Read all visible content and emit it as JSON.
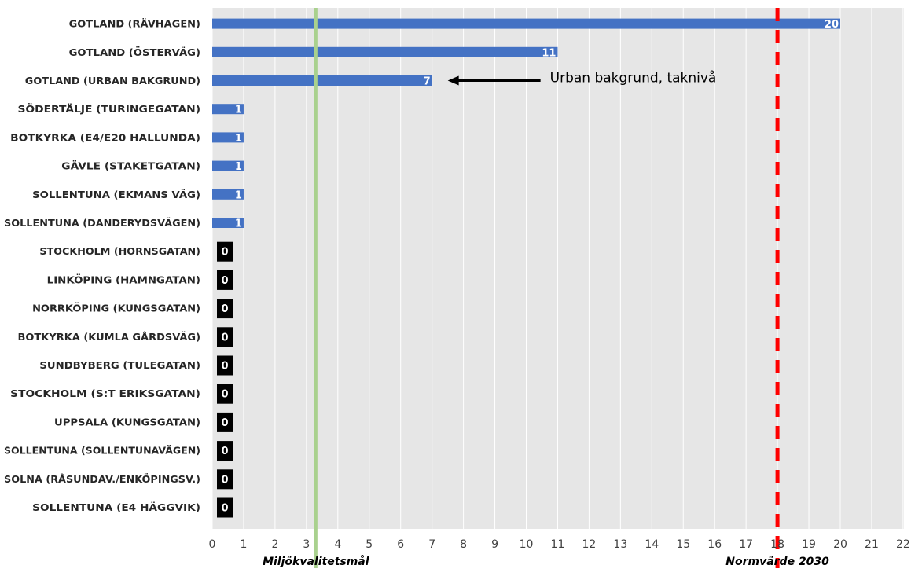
{
  "chart_data": {
    "type": "bar",
    "orientation": "horizontal",
    "categories": [
      "GOTLAND (RÄVHAGEN)",
      "GOTLAND (ÖSTERVÄG)",
      "GOTLAND (URBAN BAKGRUND)",
      "SÖDERTÄLJE (TURINGEGATAN)",
      "BOTKYRKA (E4/E20 HALLUNDA)",
      "GÄVLE (STAKETGATAN)",
      "SOLLENTUNA (EKMANS VÄG)",
      "SOLLENTUNA (DANDERYDSVÄGEN)",
      "STOCKHOLM (HORNSGATAN)",
      "LINKÖPING (HAMNGATAN)",
      "NORRKÖPING (KUNGSGATAN)",
      "BOTKYRKA (KUMLA GÅRDSVÄG)",
      "SUNDBYBERG (TULEGATAN)",
      "STOCKHOLM (S:T ERIKSGATAN)",
      "UPPSALA (KUNGSGATAN)",
      "SOLLENTUNA (SOLLENTUNAVÄGEN)",
      "SOLNA (RÅSUNDAV./ENKÖPINGSV.)",
      "SOLLENTUNA (E4 HÄGGVIK)"
    ],
    "values": [
      20,
      11,
      7,
      1,
      1,
      1,
      1,
      1,
      0,
      0,
      0,
      0,
      0,
      0,
      0,
      0,
      0,
      0
    ],
    "data_labels": [
      "20",
      "11",
      "7",
      "1",
      "1",
      "1",
      "1",
      "1",
      "0",
      "0",
      "0",
      "0",
      "0",
      "0",
      "0",
      "0",
      "0",
      "0"
    ],
    "xlim": [
      0,
      22
    ],
    "x_ticks": [
      "0",
      "1",
      "2",
      "3",
      "4",
      "5",
      "6",
      "7",
      "8",
      "9",
      "10",
      "11",
      "12",
      "13",
      "14",
      "15",
      "16",
      "17",
      "18",
      "19",
      "20",
      "21",
      "22"
    ],
    "grid": "vertical",
    "bar_color": "#4472C4",
    "zero_label_bg": "#000000",
    "plot_bg": "#E6E6E6",
    "reference_lines": [
      {
        "value": 3.3,
        "label": "Miljökvalitetsmål",
        "color": "#A9D18E",
        "style": "solid"
      },
      {
        "value": 18,
        "label": "Normvärde 2030",
        "color": "#FF0000",
        "style": "dashed"
      }
    ],
    "annotation": {
      "text": "Urban bakgrund, taknivå",
      "target_category": "GOTLAND (URBAN BAKGRUND)"
    }
  }
}
